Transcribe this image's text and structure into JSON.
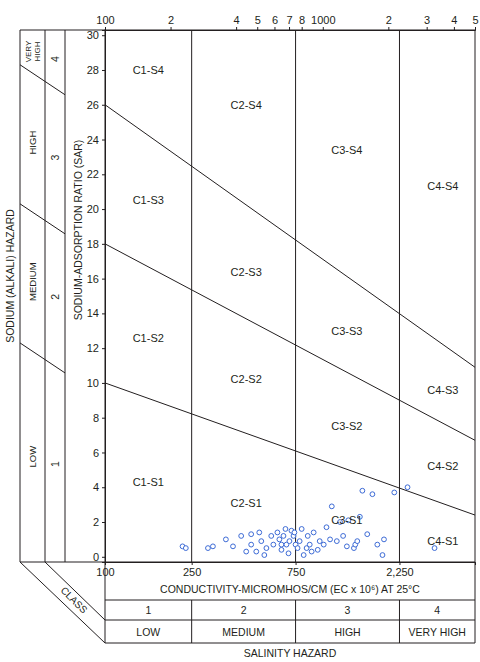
{
  "chart_data": {
    "type": "scatter",
    "x_label": "CONDUCTIVITY-MICROMHOS/CM (EC x 10⁶) AT 25°C",
    "y_label": "SODIUM-ADSORPTION RATIO (SAR)",
    "log": "x",
    "xlim": [
      100,
      5000
    ],
    "ylim": [
      -0.3,
      30.3
    ],
    "xticks": [
      100,
      250,
      750,
      {
        "value": 2250,
        "label": "2,250"
      }
    ],
    "x2ticks": [
      100,
      {
        "value": 200,
        "label": "2"
      },
      {
        "value": 400,
        "label": "4"
      },
      {
        "value": 500,
        "label": "5"
      },
      {
        "value": 600,
        "label": "6"
      },
      {
        "value": 700,
        "label": "7"
      },
      {
        "value": 800,
        "label": "8"
      },
      1000,
      {
        "value": 2000,
        "label": "2"
      },
      {
        "value": 3000,
        "label": "3"
      },
      {
        "value": 4000,
        "label": "4"
      },
      {
        "value": 5000,
        "label": "5"
      }
    ],
    "yticks": [
      0,
      2,
      4,
      6,
      8,
      10,
      12,
      14,
      16,
      18,
      20,
      22,
      24,
      26,
      28,
      30
    ],
    "x": [
      227,
      235,
      297,
      313,
      359,
      387,
      422,
      445,
      469,
      469,
      495,
      511,
      522,
      539,
      551,
      580,
      593,
      619,
      632,
      646,
      646,
      660,
      674,
      681,
      696,
      703,
      718,
      734,
      741,
      750,
      766,
      783,
      800,
      817,
      843,
      853,
      871,
      889,
      908,
      948,
      968,
      1010,
      1040,
      1080,
      1100,
      1160,
      1200,
      1240,
      1290,
      1310,
      1390,
      1410,
      1440,
      1480,
      1520,
      1600,
      1690,
      1780,
      1880,
      1910,
      2130,
      2450,
      3260
    ],
    "values": [
      0.6,
      0.5,
      0.5,
      0.6,
      1.0,
      0.6,
      1.2,
      0.3,
      1.3,
      0.7,
      0.3,
      1.4,
      0.9,
      0.1,
      0.5,
      1.2,
      0.7,
      1.4,
      1.0,
      0.7,
      0.4,
      1.2,
      1.6,
      0.7,
      0.2,
      0.9,
      1.5,
      1.2,
      1.4,
      0.7,
      0.5,
      0.9,
      1.6,
      0.1,
      0.5,
      1.2,
      0.7,
      0.3,
      1.4,
      0.4,
      0.9,
      0.7,
      1.7,
      1.0,
      2.9,
      0.9,
      2.0,
      1.2,
      0.6,
      2.1,
      0.5,
      0.7,
      0.9,
      2.3,
      3.8,
      1.3,
      3.6,
      0.7,
      0.1,
      1.0,
      3.7,
      4.0,
      0.5
    ],
    "color": "#3d6bd6",
    "marker": "circle",
    "boundaries": [
      {
        "x": [
          100,
          5000
        ],
        "y": [
          10,
          2.4
        ]
      },
      {
        "x": [
          100,
          5000
        ],
        "y": [
          18,
          6.7
        ]
      },
      {
        "x": [
          100,
          5000
        ],
        "y": [
          26,
          10.9
        ]
      }
    ],
    "salinity_boundaries": [
      250,
      750,
      2250
    ],
    "regions": [
      {
        "label": "C1-S4",
        "x": 158,
        "y": 28.0
      },
      {
        "label": "C2-S4",
        "x": 445,
        "y": 26.0
      },
      {
        "label": "C3-S4",
        "x": 1290,
        "y": 23.4
      },
      {
        "label": "C4-S4",
        "x": 3560,
        "y": 21.3
      },
      {
        "label": "C1-S3",
        "x": 158,
        "y": 20.5
      },
      {
        "label": "C2-S3",
        "x": 445,
        "y": 16.4
      },
      {
        "label": "C3-S3",
        "x": 1290,
        "y": 13.0
      },
      {
        "label": "C4-S3",
        "x": 3560,
        "y": 9.6
      },
      {
        "label": "C1-S2",
        "x": 158,
        "y": 12.6
      },
      {
        "label": "C2-S2",
        "x": 445,
        "y": 10.2
      },
      {
        "label": "C3-S2",
        "x": 1290,
        "y": 7.5
      },
      {
        "label": "C4-S2",
        "x": 3560,
        "y": 5.2
      },
      {
        "label": "C1-S1",
        "x": 158,
        "y": 4.3
      },
      {
        "label": "C2-S1",
        "x": 445,
        "y": 3.1
      },
      {
        "label": "C3-S1",
        "x": 1290,
        "y": 2.1
      },
      {
        "label": "C4-S1",
        "x": 3560,
        "y": 0.9
      }
    ],
    "class_label": "CLASS",
    "sodium_hazard": {
      "title": "SODIUM (ALKALI) HAZARD",
      "classes": [
        1,
        2,
        3,
        4
      ],
      "levels": [
        "LOW",
        "MEDIUM",
        "HIGH",
        "VERY HIGH"
      ]
    },
    "salinity_hazard": {
      "title": "SALINITY HAZARD",
      "classes": [
        1,
        2,
        3,
        4
      ],
      "levels": [
        "LOW",
        "MEDIUM",
        "HIGH",
        "VERY HIGH"
      ]
    }
  }
}
